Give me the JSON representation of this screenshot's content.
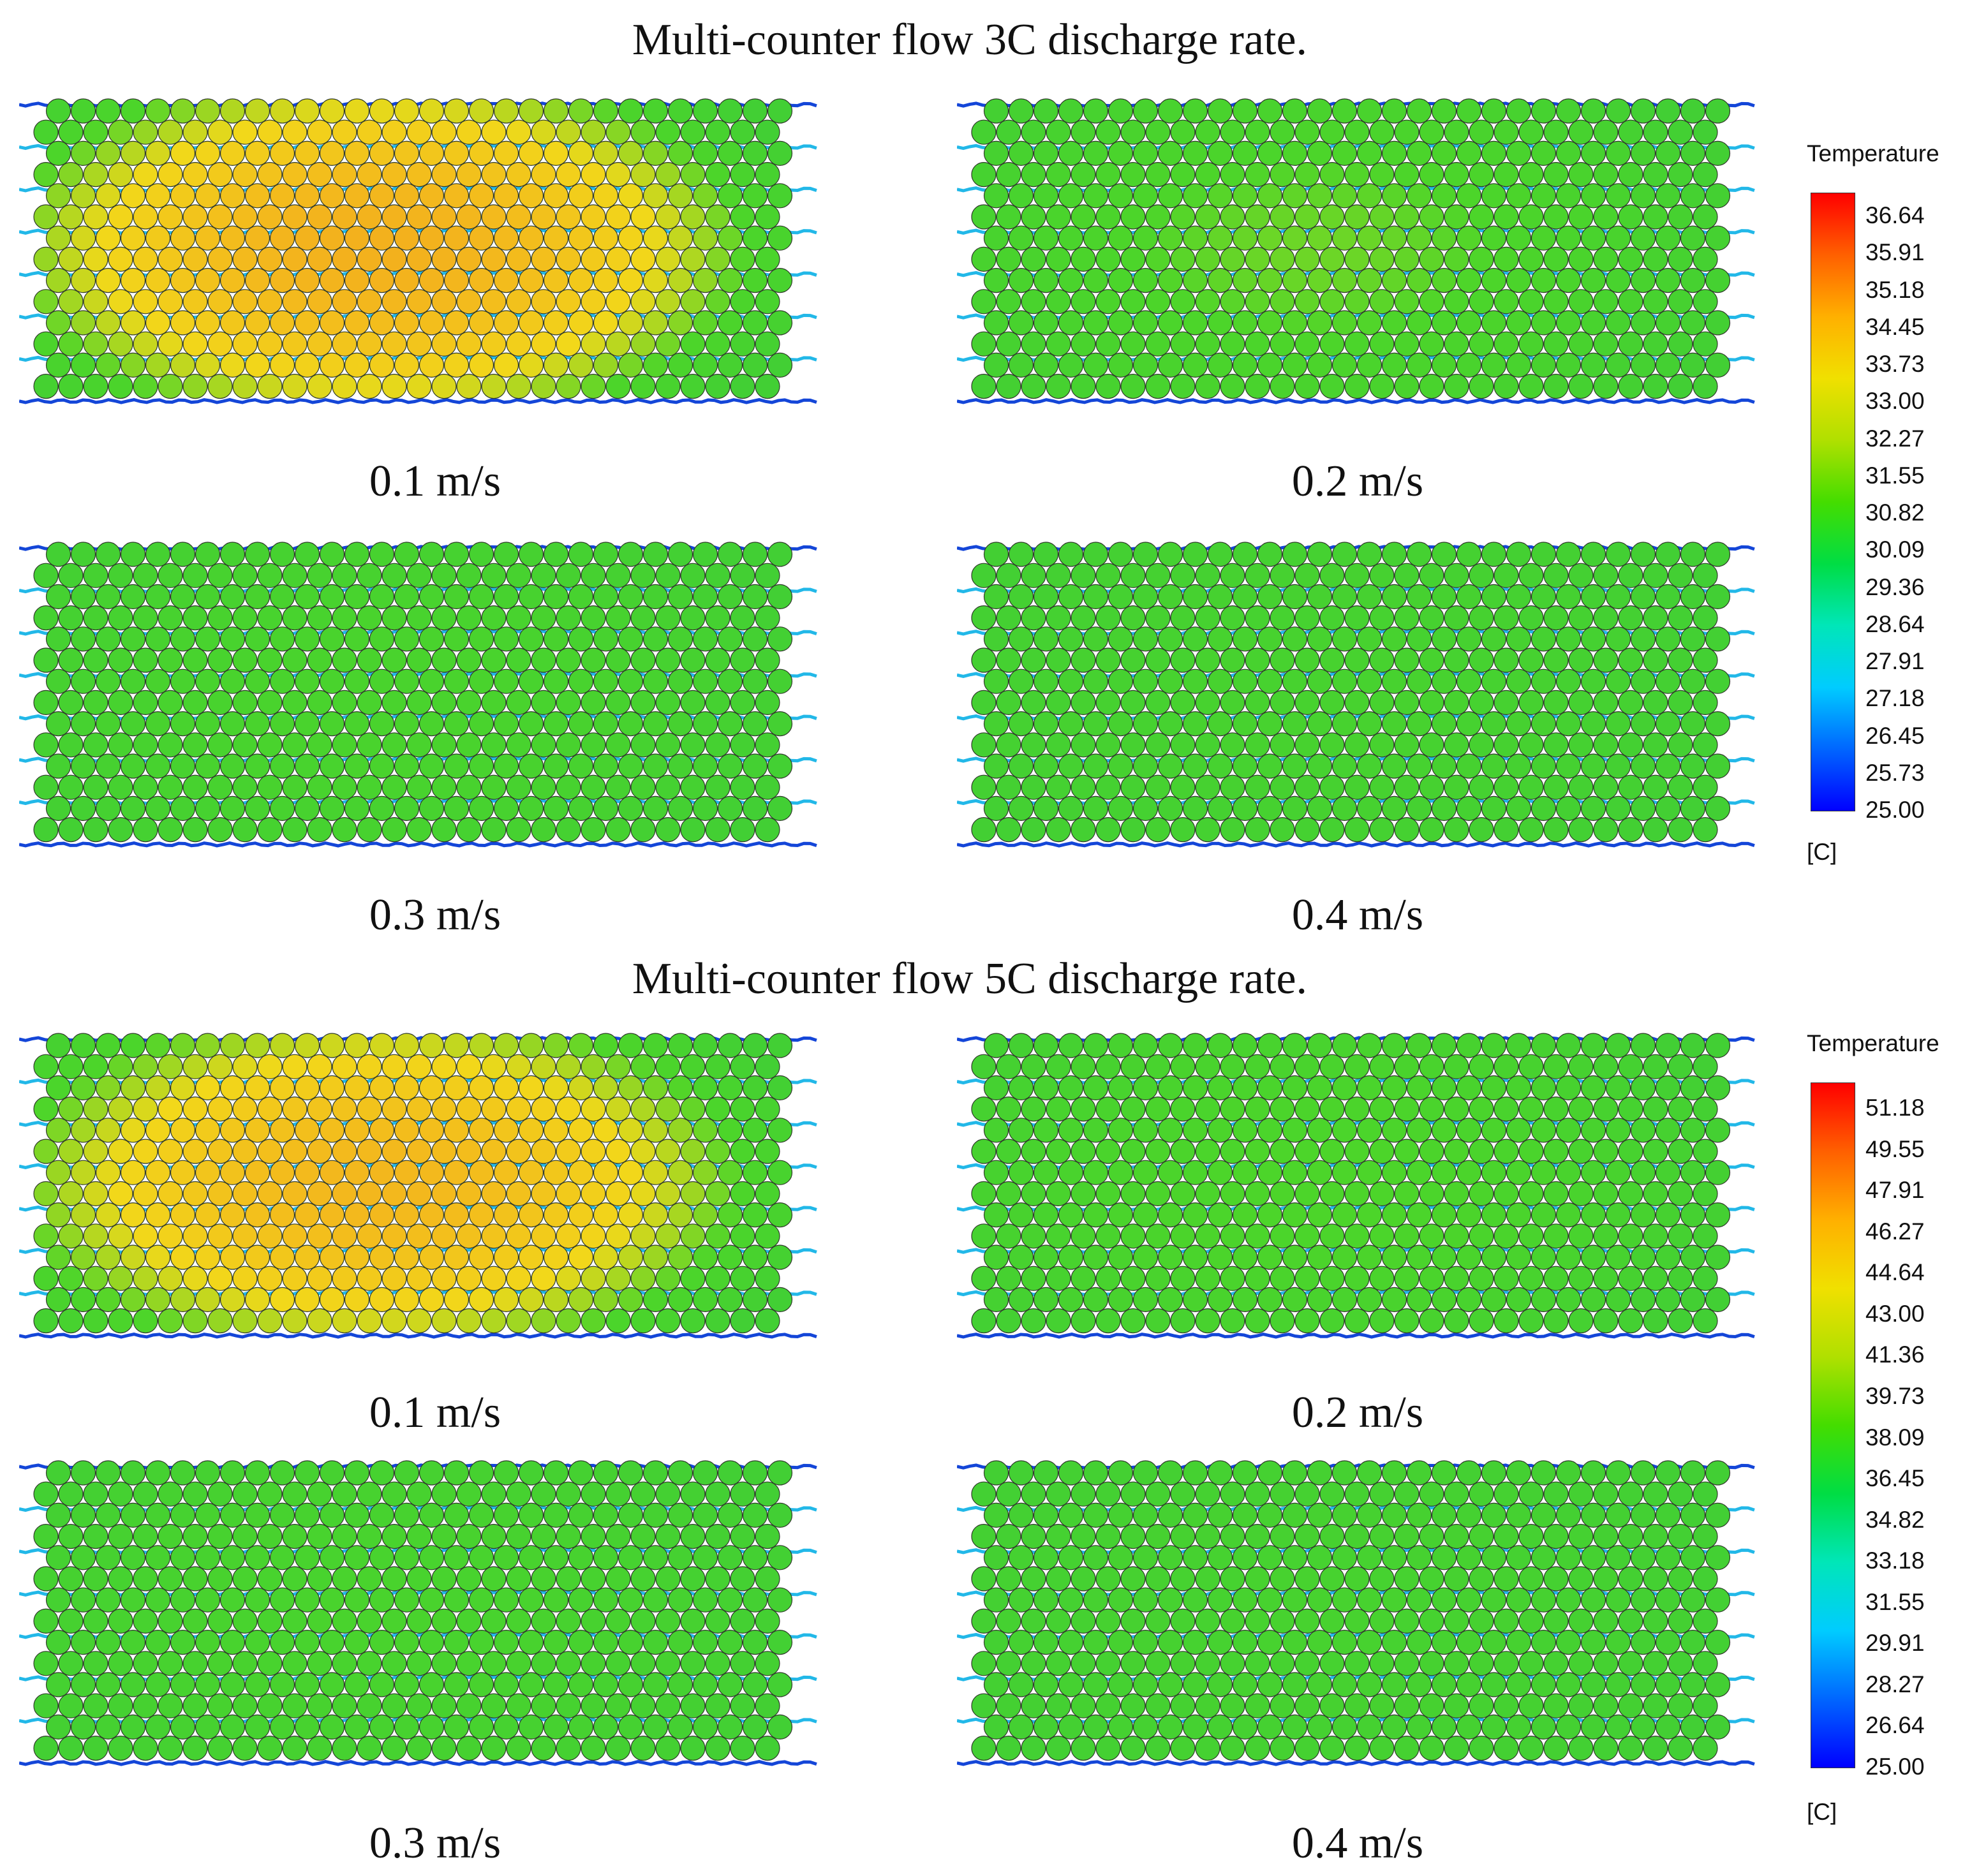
{
  "sections": [
    {
      "title": "Multi-counter flow 3C discharge rate.",
      "panels": [
        {
          "caption": "0.1 m/s",
          "velocity": 0.1,
          "hot_level": 0.85
        },
        {
          "caption": "0.2 m/s",
          "velocity": 0.2,
          "hot_level": 0.35
        },
        {
          "caption": "0.3 m/s",
          "velocity": 0.3,
          "hot_level": 0.22
        },
        {
          "caption": "0.4 m/s",
          "velocity": 0.4,
          "hot_level": 0.15
        }
      ],
      "legend": {
        "title": "Temperature",
        "unit": "[C]",
        "ticks": [
          "36.64",
          "35.91",
          "35.18",
          "34.45",
          "33.73",
          "33.00",
          "32.27",
          "31.55",
          "30.82",
          "30.09",
          "29.36",
          "28.64",
          "27.91",
          "27.18",
          "26.45",
          "25.73",
          "25.00"
        ]
      }
    },
    {
      "title": "Multi-counter flow 5C discharge rate.",
      "panels": [
        {
          "caption": "0.1 m/s",
          "velocity": 0.1,
          "hot_level": 0.8
        },
        {
          "caption": "0.2 m/s",
          "velocity": 0.2,
          "hot_level": 0.3
        },
        {
          "caption": "0.3 m/s",
          "velocity": 0.3,
          "hot_level": 0.2
        },
        {
          "caption": "0.4 m/s",
          "velocity": 0.4,
          "hot_level": 0.14
        }
      ],
      "legend": {
        "title": "Temperature",
        "unit": "[C]",
        "ticks": [
          "51.18",
          "49.55",
          "47.91",
          "46.27",
          "44.64",
          "43.00",
          "41.36",
          "39.73",
          "38.09",
          "36.45",
          "34.82",
          "33.18",
          "31.55",
          "29.91",
          "28.27",
          "26.64",
          "25.00"
        ]
      }
    }
  ],
  "colors": {
    "colormap": [
      "#0000ff",
      "#0066ff",
      "#00ccff",
      "#00e6b8",
      "#00dd44",
      "#44dd00",
      "#b0e000",
      "#f0e000",
      "#ffb000",
      "#ff6000",
      "#ff0000"
    ],
    "cell_green": "#4cd52a",
    "cell_yellow": "#f2d81a",
    "cell_orange": "#f3aa1e",
    "channel_blue": "#1446d8",
    "channel_cyan": "#22b8e8"
  }
}
